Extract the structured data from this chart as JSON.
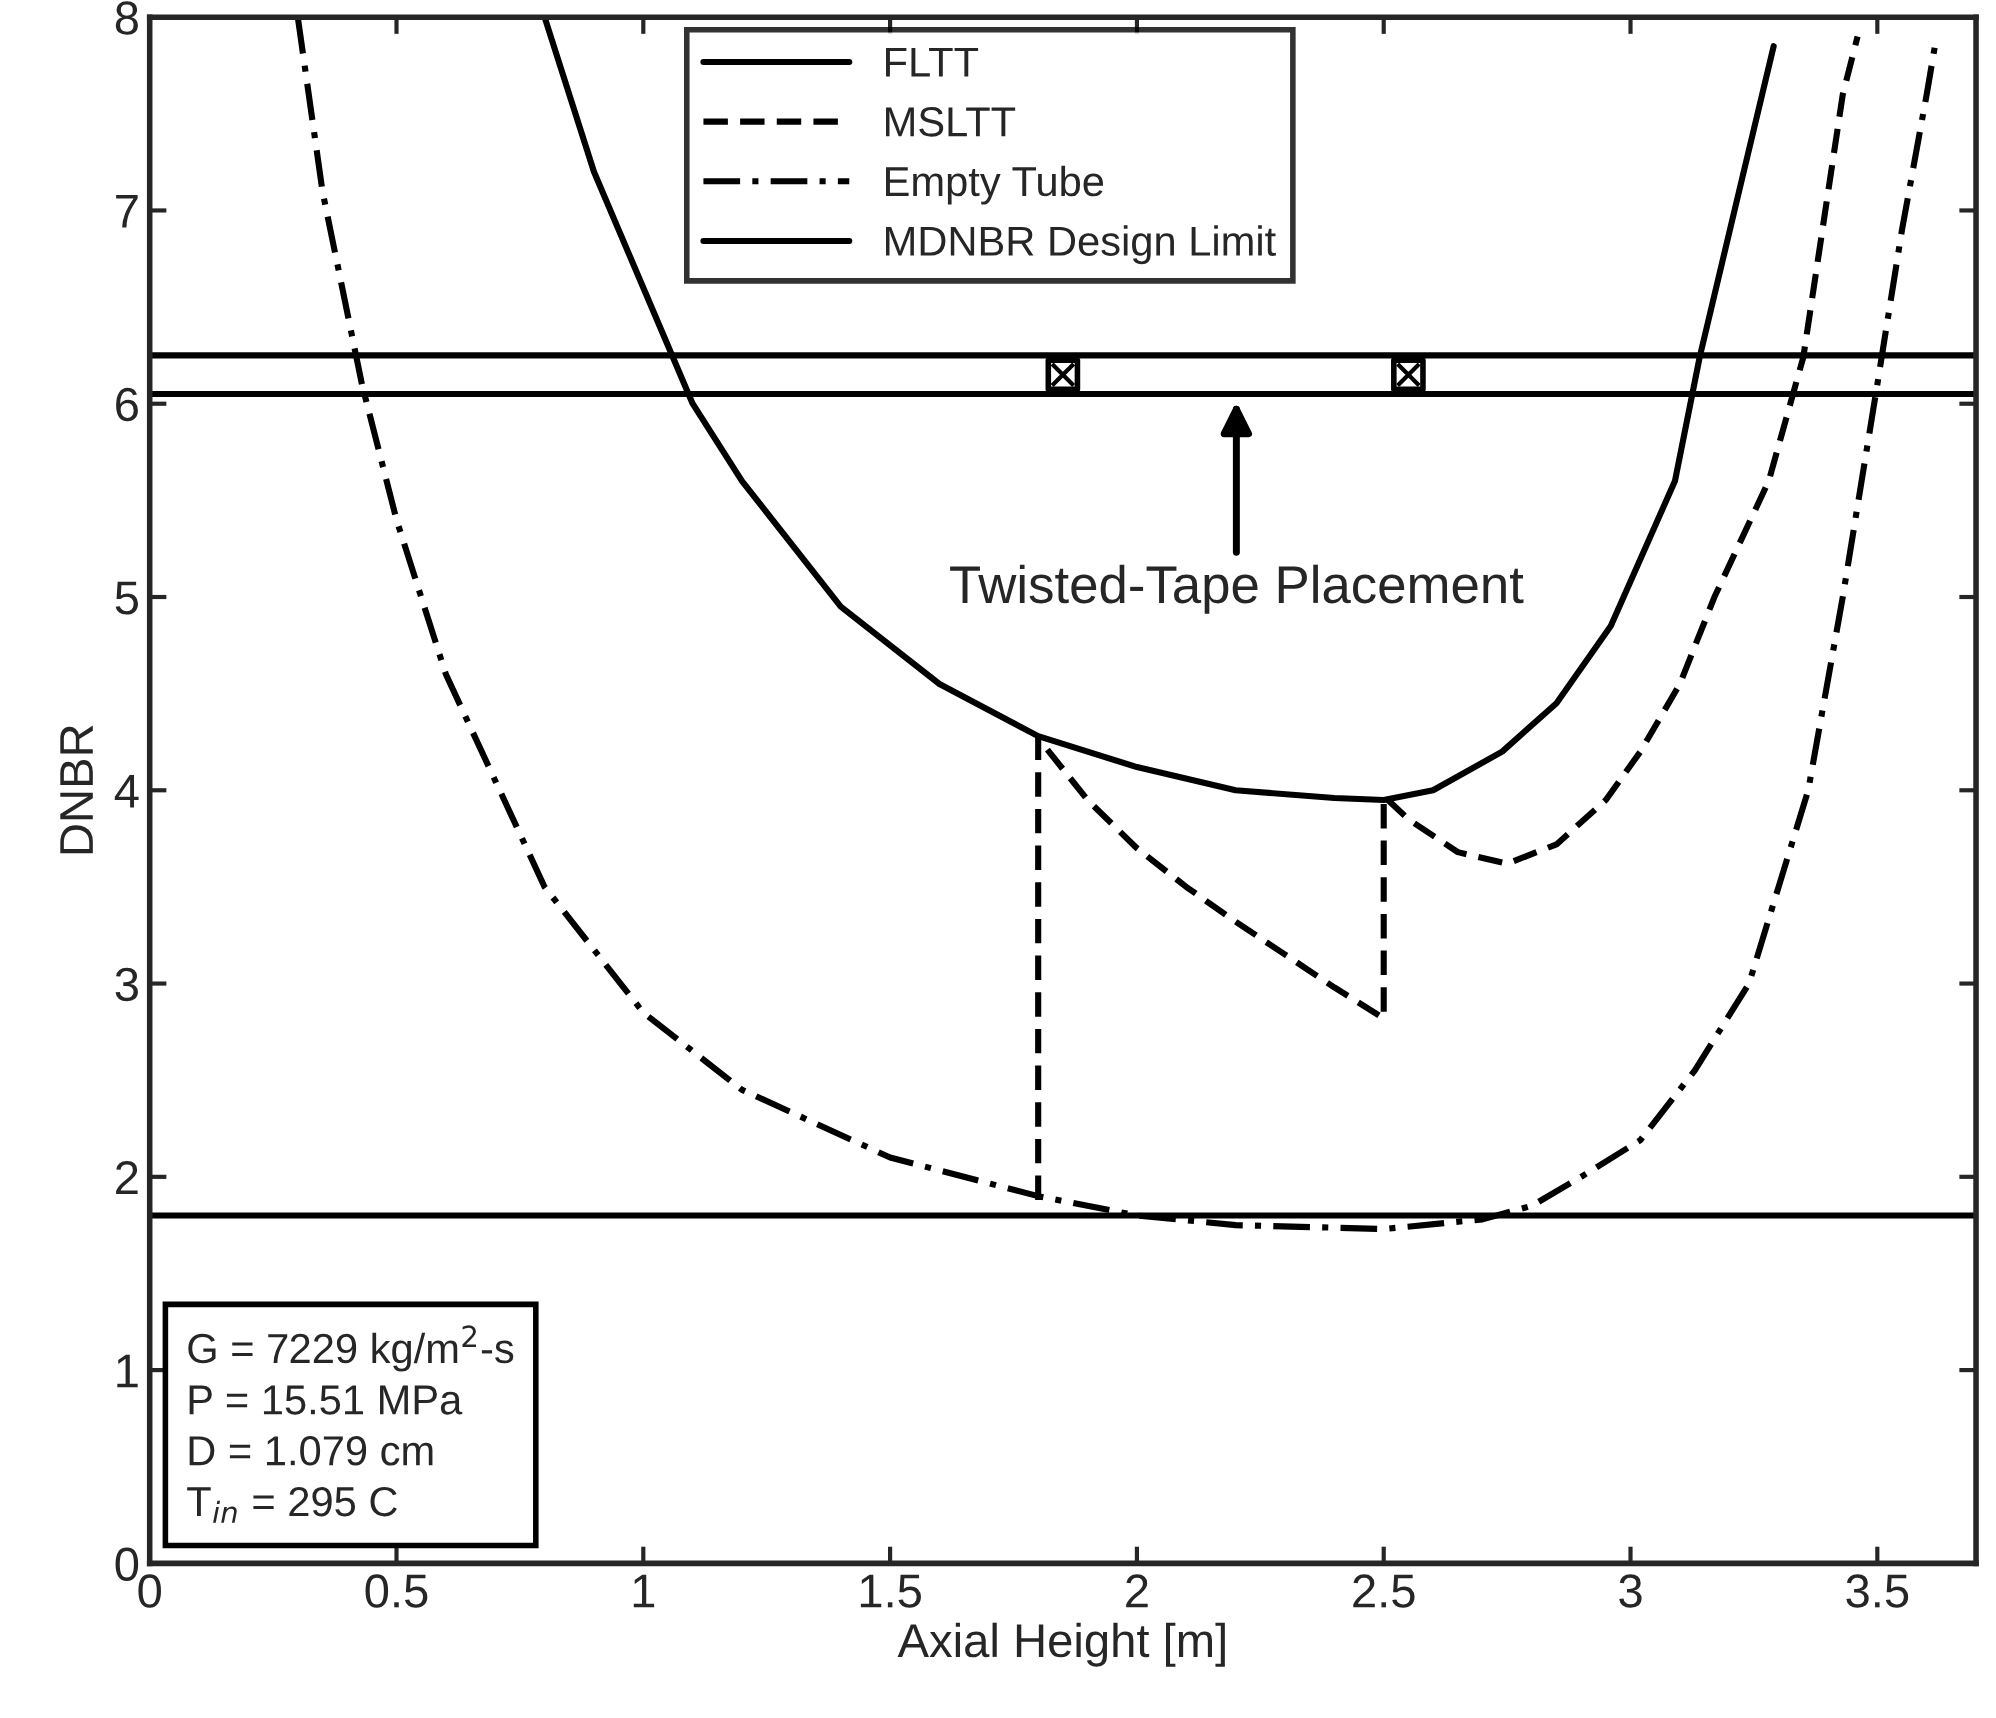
{
  "chart_data": {
    "type": "line",
    "xlabel": "Axial Height [m]",
    "ylabel": "DNBR",
    "xlim": [
      0,
      3.7
    ],
    "ylim": [
      0,
      8
    ],
    "xticks": [
      0,
      0.5,
      1,
      1.5,
      2,
      2.5,
      3,
      3.5
    ],
    "yticks": [
      0,
      1,
      2,
      3,
      4,
      5,
      6,
      7,
      8
    ],
    "grid": false,
    "legend": "top",
    "marker": "none",
    "series": [
      {
        "name": "FLTT",
        "color": "#000000",
        "line_style": "solid",
        "x": [
          0.8,
          0.9,
          1.0,
          1.1,
          1.2,
          1.4,
          1.6,
          1.8,
          2.0,
          2.2,
          2.4,
          2.5,
          2.6,
          2.74,
          2.85,
          2.96,
          3.09,
          3.14,
          3.22,
          3.29
        ],
        "values": [
          8.0,
          7.2,
          6.6,
          6.0,
          5.6,
          4.95,
          4.55,
          4.28,
          4.12,
          4.0,
          3.96,
          3.95,
          4.0,
          4.2,
          4.45,
          4.85,
          5.6,
          6.24,
          7.1,
          7.85
        ]
      },
      {
        "name": "MSLTT",
        "color": "#000000",
        "line_style": "dashed",
        "x": [
          1.8,
          1.8,
          1.9,
          2.0,
          2.1,
          2.2,
          2.3,
          2.4,
          2.5,
          2.5,
          2.55,
          2.65,
          2.75,
          2.85,
          2.95,
          3.02,
          3.1,
          3.17,
          3.28,
          3.35,
          3.43,
          3.46
        ],
        "values": [
          1.88,
          4.27,
          3.95,
          3.7,
          3.5,
          3.32,
          3.15,
          2.98,
          2.82,
          3.97,
          3.85,
          3.68,
          3.62,
          3.72,
          3.95,
          4.2,
          4.55,
          5.0,
          5.6,
          6.24,
          7.6,
          7.9
        ]
      },
      {
        "name": "Empty Tube",
        "color": "#000000",
        "line_style": "dashdot",
        "x": [
          0.3,
          0.35,
          0.43,
          0.5,
          0.6,
          0.8,
          1.0,
          1.2,
          1.5,
          1.8,
          2.0,
          2.2,
          2.5,
          2.7,
          2.8,
          2.9,
          3.02,
          3.13,
          3.24,
          3.36,
          3.43,
          3.5,
          3.55,
          3.6,
          3.62
        ],
        "values": [
          8.0,
          7.1,
          6.1,
          5.4,
          4.6,
          3.5,
          2.85,
          2.45,
          2.1,
          1.9,
          1.8,
          1.75,
          1.73,
          1.78,
          1.85,
          2.0,
          2.19,
          2.55,
          3.0,
          4.0,
          5.0,
          6.1,
          6.9,
          7.6,
          7.9
        ]
      },
      {
        "name": "MDNBR Design Limit",
        "color": "#000000",
        "line_style": "solid",
        "x": [
          0,
          3.7
        ],
        "values": [
          1.8,
          1.8
        ]
      },
      {
        "type": "scatter",
        "color": "#000000",
        "marker": "square",
        "x": [
          1.85,
          2.55
        ],
        "values": [
          6.15,
          6.15
        ]
      }
    ],
    "ref_lines": [
      {
        "axis": "y",
        "value": 6.25,
        "color": "#000000",
        "line_style": "solid"
      },
      {
        "axis": "y",
        "value": 6.05,
        "color": "#000000",
        "line_style": "solid"
      }
    ],
    "annotations": [
      "Twisted-Tape Placement",
      "G = 7229 kg/m$^{2}$-s\nP = 15.51 MPa\nD = 1.079 cm\nT$_{in}$ = 295 C"
    ]
  }
}
